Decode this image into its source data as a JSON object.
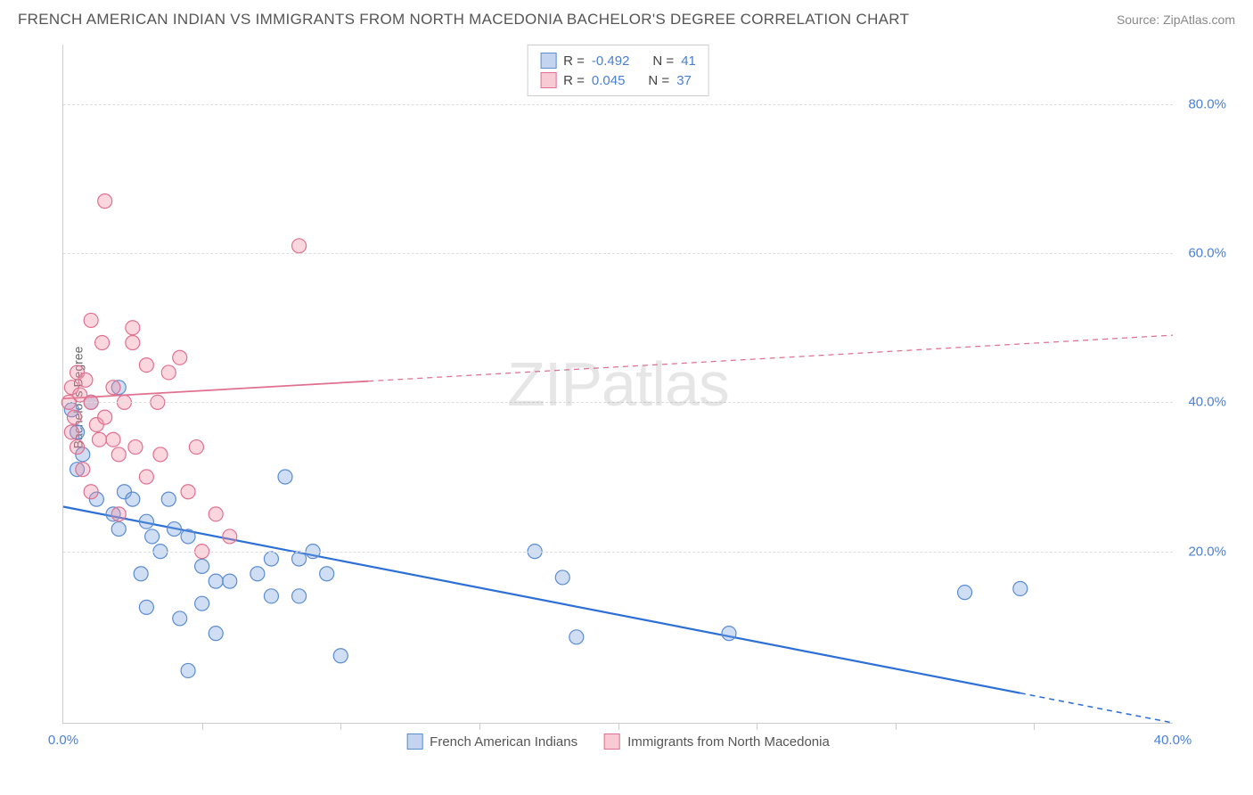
{
  "title": "FRENCH AMERICAN INDIAN VS IMMIGRANTS FROM NORTH MACEDONIA BACHELOR'S DEGREE CORRELATION CHART",
  "source": "Source: ZipAtlas.com",
  "y_axis_label": "Bachelor's Degree",
  "watermark_bold": "ZIP",
  "watermark_light": "atlas",
  "chart": {
    "type": "scatter",
    "x_range": [
      0,
      40
    ],
    "y_range": [
      -3,
      88
    ],
    "x_ticks": [
      0,
      40
    ],
    "x_tick_labels": [
      "0.0%",
      "40.0%"
    ],
    "x_minor_ticks": [
      5,
      10,
      15,
      20,
      25,
      30,
      35
    ],
    "y_gridlines": [
      20,
      40,
      60,
      80
    ],
    "y_tick_labels": [
      "20.0%",
      "40.0%",
      "60.0%",
      "80.0%"
    ],
    "grid_color": "#dddddd",
    "background": "#ffffff",
    "marker_radius": 8,
    "marker_stroke_width": 1.2,
    "series": [
      {
        "name": "French American Indians",
        "fill": "rgba(120,160,220,0.35)",
        "stroke": "#5a8cd0",
        "points": [
          [
            0.3,
            39
          ],
          [
            0.5,
            36
          ],
          [
            0.7,
            33
          ],
          [
            0.5,
            31
          ],
          [
            1.0,
            40
          ],
          [
            2.0,
            42
          ],
          [
            1.2,
            27
          ],
          [
            1.8,
            25
          ],
          [
            2.2,
            28
          ],
          [
            2.0,
            23
          ],
          [
            2.5,
            27
          ],
          [
            3.0,
            24
          ],
          [
            2.8,
            17
          ],
          [
            3.2,
            22
          ],
          [
            3.5,
            20
          ],
          [
            3.0,
            12.5
          ],
          [
            3.8,
            27
          ],
          [
            4.0,
            23
          ],
          [
            4.5,
            22
          ],
          [
            4.2,
            11
          ],
          [
            5.0,
            18
          ],
          [
            5.5,
            16
          ],
          [
            5.0,
            13
          ],
          [
            5.5,
            9
          ],
          [
            4.5,
            4
          ],
          [
            6.0,
            16
          ],
          [
            7.0,
            17
          ],
          [
            7.5,
            14
          ],
          [
            7.5,
            19
          ],
          [
            8.0,
            30
          ],
          [
            8.5,
            14
          ],
          [
            8.5,
            19
          ],
          [
            9.0,
            20
          ],
          [
            9.5,
            17
          ],
          [
            10.0,
            6
          ],
          [
            17.0,
            20
          ],
          [
            18.0,
            16.5
          ],
          [
            18.5,
            8.5
          ],
          [
            24.0,
            9
          ],
          [
            32.5,
            14.5
          ],
          [
            34.5,
            15
          ]
        ],
        "trend": {
          "x1": 0,
          "y1": 26,
          "x2": 40,
          "y2": -3,
          "solid_until_x": 34.5,
          "color": "#2c6fd6",
          "width": 2.2
        }
      },
      {
        "name": "Immigrants from North Macedonia",
        "fill": "rgba(240,140,160,0.35)",
        "stroke": "#e07090",
        "points": [
          [
            0.2,
            40
          ],
          [
            0.3,
            42
          ],
          [
            0.4,
            38
          ],
          [
            0.5,
            44
          ],
          [
            0.6,
            41
          ],
          [
            0.3,
            36
          ],
          [
            0.8,
            43
          ],
          [
            0.5,
            34
          ],
          [
            1.0,
            40
          ],
          [
            1.2,
            37
          ],
          [
            0.7,
            31
          ],
          [
            1.3,
            35
          ],
          [
            1.5,
            38
          ],
          [
            1.0,
            28
          ],
          [
            1.8,
            42
          ],
          [
            1.0,
            51
          ],
          [
            1.4,
            48
          ],
          [
            1.8,
            35
          ],
          [
            2.0,
            33
          ],
          [
            2.2,
            40
          ],
          [
            2.0,
            25
          ],
          [
            2.5,
            50
          ],
          [
            2.6,
            34
          ],
          [
            3.0,
            45
          ],
          [
            3.0,
            30
          ],
          [
            3.4,
            40
          ],
          [
            3.8,
            44
          ],
          [
            3.5,
            33
          ],
          [
            4.2,
            46
          ],
          [
            4.5,
            28
          ],
          [
            4.8,
            34
          ],
          [
            5.0,
            20
          ],
          [
            5.5,
            25
          ],
          [
            6.0,
            22
          ],
          [
            1.5,
            67
          ],
          [
            8.5,
            61
          ],
          [
            2.5,
            48
          ]
        ],
        "trend": {
          "x1": 0,
          "y1": 40.5,
          "x2": 40,
          "y2": 49,
          "solid_until_x": 11,
          "color": "#e07090",
          "width": 1.8
        }
      }
    ]
  },
  "legend_top": {
    "rows": [
      {
        "swatch_fill": "rgba(120,160,220,0.45)",
        "swatch_border": "#5a8cd0",
        "r_label": "R = ",
        "r_val": "-0.492",
        "n_label": "N = ",
        "n_val": "41"
      },
      {
        "swatch_fill": "rgba(240,140,160,0.45)",
        "swatch_border": "#e07090",
        "r_label": "R = ",
        "r_val": " 0.045",
        "n_label": "N = ",
        "n_val": "37"
      }
    ]
  },
  "legend_bottom": {
    "items": [
      {
        "swatch_fill": "rgba(120,160,220,0.45)",
        "swatch_border": "#5a8cd0",
        "label": "French American Indians"
      },
      {
        "swatch_fill": "rgba(240,140,160,0.45)",
        "swatch_border": "#e07090",
        "label": "Immigrants from North Macedonia"
      }
    ]
  }
}
